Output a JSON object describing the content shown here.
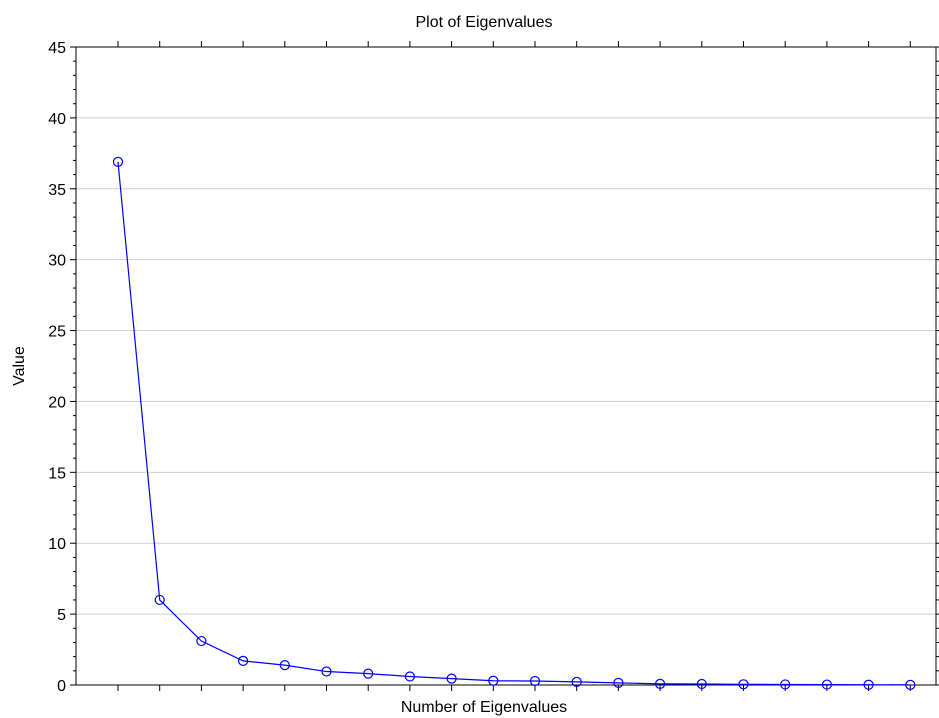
{
  "chart_data": {
    "type": "line",
    "title": "Plot of Eigenvalues",
    "xlabel": "Number of Eigenvalues",
    "ylabel": "Value",
    "ylim": [
      0,
      45
    ],
    "yticks": [
      0,
      5,
      10,
      15,
      20,
      25,
      30,
      35,
      40,
      45
    ],
    "grid": "horizontal",
    "x": [
      1,
      2,
      3,
      4,
      5,
      6,
      7,
      8,
      9,
      10,
      11,
      12,
      13,
      14,
      15,
      16,
      17,
      18,
      19,
      20
    ],
    "series": [
      {
        "name": "",
        "values": [
          36.9,
          6.0,
          3.1,
          1.7,
          1.4,
          0.95,
          0.8,
          0.6,
          0.45,
          0.3,
          0.28,
          0.22,
          0.15,
          0.08,
          0.07,
          0.05,
          0.04,
          0.03,
          0.02,
          0.01
        ]
      }
    ],
    "colors": {
      "line": "#0000ff",
      "marker": "#0000ff",
      "grid": "#cfcfcf",
      "axis": "#000000"
    }
  }
}
